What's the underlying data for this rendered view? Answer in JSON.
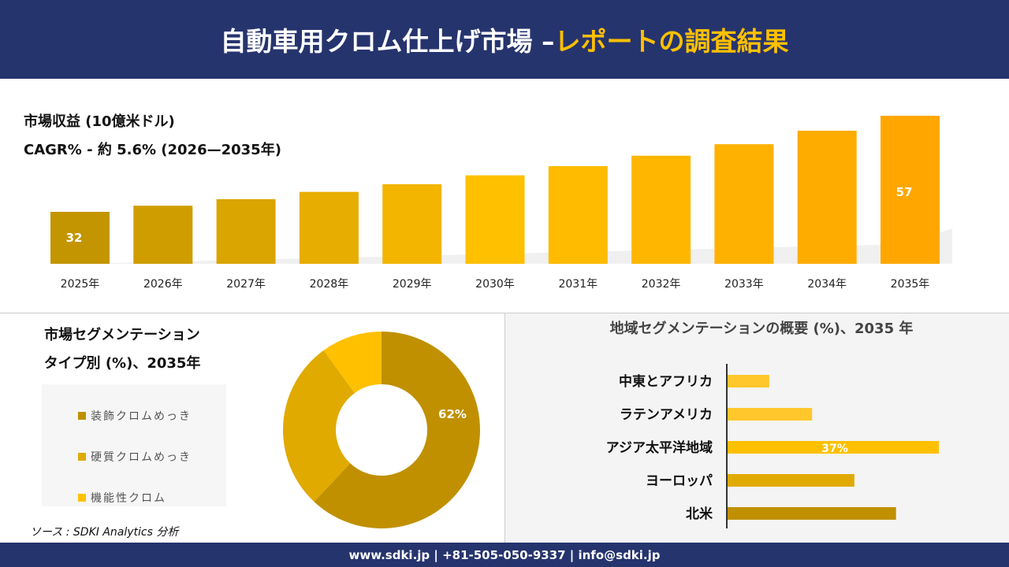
{
  "header": {
    "title_main": "自動車用クロム仕上げ市場 –",
    "title_accent": "レポートの調査結果"
  },
  "meta": {
    "revenue_label": "市場収益 (10億米ドル)",
    "cagr_label": "CAGR% - 約 5.6% (2026—2035年)"
  },
  "colors": {
    "navy": "#26346E",
    "gold_dark": "#C09000",
    "gold_mid": "#E0AA00",
    "gold_bright": "#FFC000"
  },
  "chart_data": [
    {
      "type": "bar",
      "title": "市場収益 (10億米ドル)",
      "categories": [
        "2025年",
        "2026年",
        "2027年",
        "2028年",
        "2029年",
        "2030年",
        "2031年",
        "2032年",
        "2033年",
        "2034年",
        "2035年"
      ],
      "values": [
        32,
        33.6,
        35.3,
        37.2,
        39.2,
        41.5,
        43.9,
        46.6,
        49.6,
        53.1,
        57
      ],
      "data_labels": {
        "0": "32",
        "10": "57"
      },
      "grid": false
    },
    {
      "type": "pie",
      "title": "市場セグメンテーション タイプ別 (%)、2035年",
      "donut": true,
      "categories": [
        "装飾クロムめっき",
        "硬質クロムめっき",
        "機能性クロム"
      ],
      "values": [
        62,
        28,
        10
      ],
      "colors": [
        "#C09000",
        "#E0AA00",
        "#FFC000"
      ],
      "data_labels": {
        "0": "62%"
      },
      "legend": "left"
    },
    {
      "type": "bar",
      "orientation": "horizontal",
      "title": "地域セグメンテーションの概要 (%)、2035 年",
      "categories": [
        "中東とアフリカ",
        "ラテンアメリカ",
        "アジア太平洋地域",
        "ヨーロッパ",
        "北米"
      ],
      "values": [
        7.3,
        14.8,
        37,
        22.2,
        29.5
      ],
      "colors": [
        "#FFC72C",
        "#FFC72C",
        "#FFC000",
        "#E0AA00",
        "#C09000"
      ],
      "data_labels": {
        "2": "37%"
      }
    }
  ],
  "left": {
    "title_line1": "市場セグメンテーション",
    "title_line2": "タイプ別 (%)、2035年"
  },
  "source": "ソース : SDKI Analytics 分析",
  "footer": "www.sdki.jp | +81-505-050-9337 | info@sdki.jp"
}
